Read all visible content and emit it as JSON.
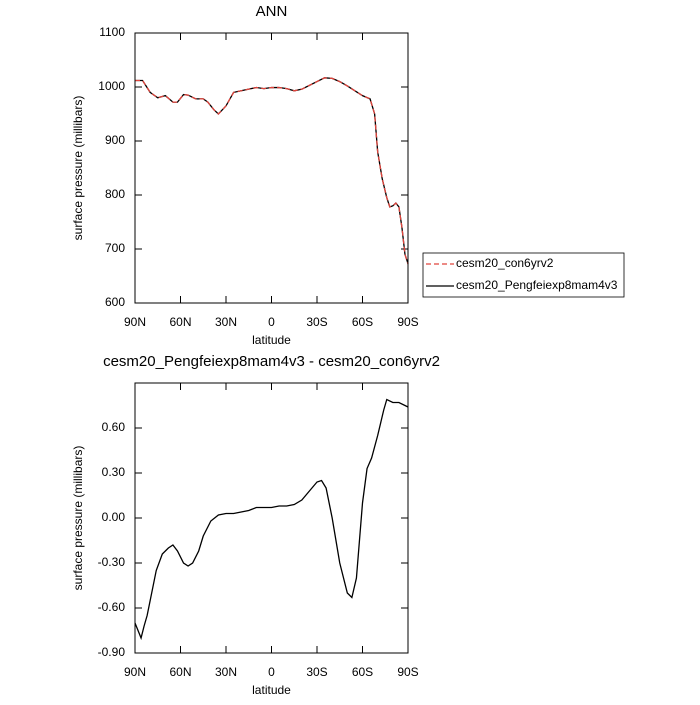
{
  "chart_data": [
    {
      "type": "line",
      "title": "ANN",
      "x_label": "latitude",
      "y_label": "surface pressure (millibars)",
      "x": [
        90,
        85,
        80,
        75,
        70,
        65,
        62,
        58,
        55,
        50,
        45,
        42,
        38,
        35,
        30,
        25,
        20,
        15,
        10,
        5,
        0,
        -5,
        -10,
        -15,
        -20,
        -25,
        -30,
        -35,
        -40,
        -45,
        -50,
        -55,
        -60,
        -65,
        -68,
        -70,
        -73,
        -76,
        -78,
        -80,
        -82,
        -84,
        -86,
        -88,
        -90
      ],
      "series": [
        {
          "name": "cesm20_con6yrv2",
          "color": "#e0443c",
          "linestyle": "dashed",
          "values": [
            1012,
            1012,
            990,
            980,
            984,
            972,
            972,
            986,
            985,
            978,
            978,
            972,
            958,
            950,
            965,
            990,
            993,
            996,
            999,
            997,
            999,
            999,
            997,
            993,
            996,
            1003,
            1010,
            1017,
            1016,
            1010,
            1002,
            993,
            984,
            978,
            950,
            880,
            830,
            795,
            778,
            780,
            785,
            778,
            740,
            690,
            672
          ]
        },
        {
          "name": "cesm20_Pengfeiexp8mam4v3",
          "color": "#000000",
          "linestyle": "solid",
          "values": [
            1012,
            1012,
            990,
            980,
            984,
            972,
            972,
            986,
            985,
            978,
            978,
            972,
            958,
            950,
            965,
            990,
            993,
            996,
            999,
            997,
            999,
            999,
            997,
            993,
            996,
            1003,
            1010,
            1017,
            1016,
            1010,
            1002,
            993,
            984,
            978,
            950,
            880,
            830,
            795,
            778,
            780,
            785,
            778,
            740,
            690,
            673
          ]
        }
      ],
      "xlim": [
        90,
        -90
      ],
      "xticks": [
        {
          "value": 90,
          "label": "90N"
        },
        {
          "value": 60,
          "label": "60N"
        },
        {
          "value": 30,
          "label": "30N"
        },
        0,
        {
          "value": -30,
          "label": "30S"
        },
        {
          "value": -60,
          "label": "60S"
        },
        {
          "value": -90,
          "label": "90S"
        }
      ],
      "ylim": [
        600,
        1100
      ],
      "yticks": [
        600,
        700,
        800,
        900,
        1000,
        1100
      ],
      "legend": "outside-right"
    },
    {
      "type": "line",
      "title": "cesm20_Pengfeiexp8mam4v3 - cesm20_con6yrv2",
      "x_label": "latitude",
      "y_label": "surface pressure (millibars)",
      "x": [
        90,
        88,
        86,
        84,
        82,
        80,
        76,
        72,
        68,
        65,
        62,
        58,
        55,
        52,
        48,
        45,
        40,
        35,
        30,
        25,
        20,
        15,
        10,
        5,
        0,
        -5,
        -10,
        -15,
        -20,
        -25,
        -30,
        -33,
        -36,
        -40,
        -45,
        -50,
        -53,
        -56,
        -60,
        -63,
        -66,
        -70,
        -74,
        -76,
        -80,
        -84,
        -88,
        -90
      ],
      "series": [
        {
          "color": "#000000",
          "linestyle": "solid",
          "values": [
            -0.7,
            -0.75,
            -0.8,
            -0.72,
            -0.65,
            -0.55,
            -0.35,
            -0.24,
            -0.2,
            -0.18,
            -0.22,
            -0.3,
            -0.32,
            -0.3,
            -0.22,
            -0.12,
            -0.02,
            0.02,
            0.03,
            0.03,
            0.04,
            0.05,
            0.07,
            0.07,
            0.07,
            0.08,
            0.08,
            0.09,
            0.12,
            0.18,
            0.24,
            0.25,
            0.2,
            0.0,
            -0.3,
            -0.5,
            -0.53,
            -0.4,
            0.1,
            0.33,
            0.4,
            0.55,
            0.72,
            0.79,
            0.77,
            0.77,
            0.75,
            0.74
          ]
        }
      ],
      "xlim": [
        90,
        -90
      ],
      "xticks": [
        {
          "value": 90,
          "label": "90N"
        },
        {
          "value": 60,
          "label": "60N"
        },
        {
          "value": 30,
          "label": "30N"
        },
        0,
        {
          "value": -30,
          "label": "30S"
        },
        {
          "value": -60,
          "label": "60S"
        },
        {
          "value": -90,
          "label": "90S"
        }
      ],
      "ylim": [
        -0.9,
        0.9
      ],
      "yticks": [
        {
          "value": -0.9,
          "label": "-0.90"
        },
        {
          "value": -0.6,
          "label": "-0.60"
        },
        {
          "value": -0.3,
          "label": "-0.30"
        },
        {
          "value": 0,
          "label": "0.00"
        },
        {
          "value": 0.3,
          "label": "0.30"
        },
        {
          "value": 0.6,
          "label": "0.60"
        }
      ]
    }
  ]
}
